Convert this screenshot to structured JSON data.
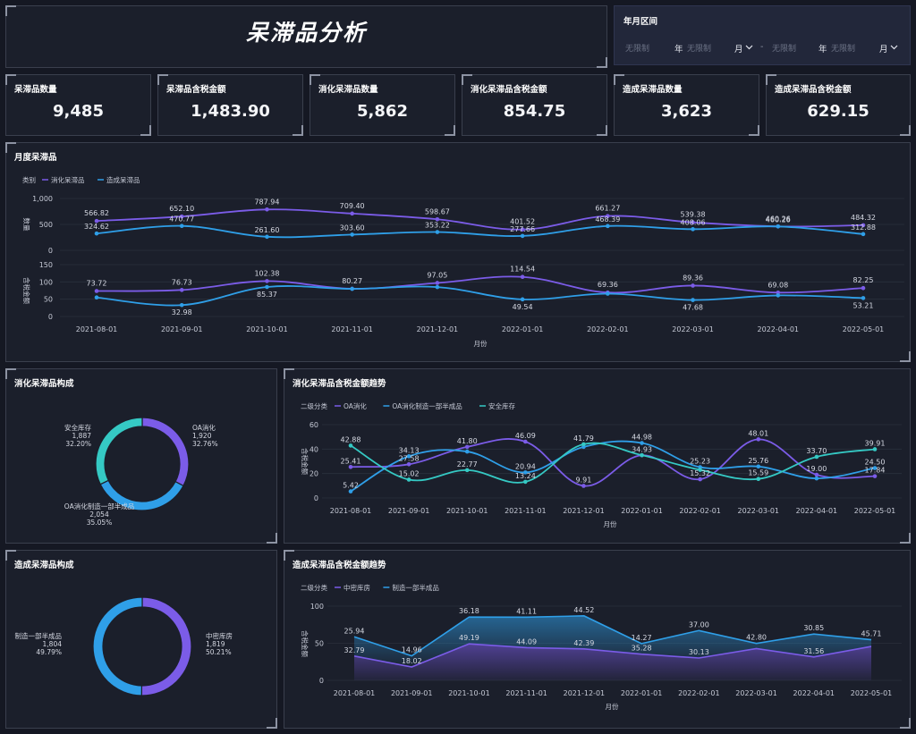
{
  "title": "呆滞品分析",
  "filter": {
    "label": "年月区间",
    "start_year_placeholder": "无限制",
    "year_unit": "年",
    "start_month_placeholder": "无限制",
    "month_unit": "月",
    "separator": "-",
    "end_year_placeholder": "无限制",
    "end_month_placeholder": "无限制"
  },
  "kpis": [
    {
      "label": "呆滞品数量",
      "value": "9,485"
    },
    {
      "label": "呆滞品含税金额",
      "value": "1,483.90"
    },
    {
      "label": "消化呆滞品数量",
      "value": "5,862"
    },
    {
      "label": "消化呆滞品含税金额",
      "value": "854.75"
    },
    {
      "label": "造成呆滞品数量",
      "value": "3,623"
    },
    {
      "label": "造成呆滞品含税金额",
      "value": "629.15"
    }
  ],
  "colors": {
    "purple": "#7b5ce8",
    "blue": "#2f9fe8",
    "teal": "#35c9c4",
    "purple_dark": "#6a52d9"
  },
  "chart_data": [
    {
      "id": "monthly",
      "type": "line",
      "title": "月度呆滞品",
      "legend_title": "类别",
      "xlabel": "月份",
      "categories": [
        "2021-08-01",
        "2021-09-01",
        "2021-10-01",
        "2021-11-01",
        "2021-12-01",
        "2022-01-01",
        "2022-02-01",
        "2022-03-01",
        "2022-04-01",
        "2022-05-01"
      ],
      "series": [
        {
          "name": "消化呆滞品",
          "color": "#7b5ce8"
        },
        {
          "name": "造成呆滞品",
          "color": "#2f9fe8"
        }
      ],
      "panels": [
        {
          "ylabel": "数量",
          "ylim": [
            0,
            1000
          ],
          "yticks": [
            "0",
            "500",
            "1,000"
          ],
          "series": [
            {
              "name": "消化呆滞品",
              "values": [
                566.82,
                652.1,
                787.94,
                709.4,
                598.67,
                401.52,
                661.27,
                539.38,
                460.26,
                484.32
              ]
            },
            {
              "name": "造成呆滞品",
              "values": [
                324.62,
                470.77,
                261.6,
                303.6,
                353.22,
                277.66,
                468.39,
                408.06,
                460.26,
                312.88
              ]
            }
          ]
        },
        {
          "ylabel": "含税金额",
          "ylim": [
            0,
            150
          ],
          "yticks": [
            "0",
            "50",
            "100",
            "150"
          ],
          "series": [
            {
              "name": "消化呆滞品",
              "values": [
                73.72,
                76.73,
                102.38,
                80.27,
                97.05,
                114.54,
                69.36,
                89.36,
                69.08,
                82.25
              ]
            },
            {
              "name": "造成呆滞品",
              "values": [
                55.0,
                32.98,
                85.37,
                80.0,
                85.0,
                49.54,
                66.0,
                47.68,
                61.0,
                53.21
              ]
            }
          ],
          "labels": [
            {
              "series": 0,
              "values": [
                "73.72",
                "76.73",
                "102.38",
                "80.27",
                "97.05",
                "114.54",
                "69.36",
                "89.36",
                "69.08",
                "82.25"
              ]
            },
            {
              "series": 1,
              "values": [
                "",
                "32.98",
                "85.37",
                "",
                "",
                "49.54",
                "",
                "47.68",
                "",
                "53.21"
              ]
            }
          ]
        }
      ]
    },
    {
      "id": "digest_donut",
      "type": "pie",
      "title": "消化呆滞品构成",
      "slices": [
        {
          "name": "OA消化",
          "value": 1920,
          "value_label": "1,920",
          "percent": "32.76%",
          "color": "#7b5ce8"
        },
        {
          "name": "OA消化制造一部半成品",
          "value": 2054,
          "value_label": "2,054",
          "percent": "35.05%",
          "color": "#2f9fe8"
        },
        {
          "name": "安全库存",
          "value": 1887,
          "value_label": "1,887",
          "percent": "32.20%",
          "color": "#35c9c4"
        }
      ]
    },
    {
      "id": "digest_trend",
      "type": "line",
      "title": "消化呆滞品含税金额趋势",
      "legend_title": "二级分类",
      "xlabel": "月份",
      "ylabel": "含税金额",
      "ylim": [
        0,
        60
      ],
      "yticks": [
        "0",
        "20",
        "40",
        "60"
      ],
      "categories": [
        "2021-08-01",
        "2021-09-01",
        "2021-10-01",
        "2021-11-01",
        "2021-12-01",
        "2022-01-01",
        "2022-02-01",
        "2022-03-01",
        "2022-04-01",
        "2022-05-01"
      ],
      "series": [
        {
          "name": "OA消化",
          "color": "#7b5ce8",
          "values": [
            25.41,
            27.58,
            41.8,
            46.09,
            9.91,
            34.93,
            15.32,
            48.01,
            19.0,
            17.84
          ]
        },
        {
          "name": "OA消化制造一部半成品",
          "color": "#2f9fe8",
          "values": [
            5.42,
            34.13,
            38.0,
            20.94,
            41.79,
            44.98,
            25.23,
            25.76,
            16.0,
            24.5
          ]
        },
        {
          "name": "安全库存",
          "color": "#35c9c4",
          "values": [
            42.88,
            15.02,
            22.77,
            13.24,
            44.0,
            35.0,
            23.0,
            15.59,
            33.7,
            39.91
          ]
        }
      ],
      "labels": [
        {
          "text": "42.88",
          "i": 0,
          "v": 42.88
        },
        {
          "text": "25.41",
          "i": 0,
          "v": 25.41
        },
        {
          "text": "5.42",
          "i": 0,
          "v": 5.42
        },
        {
          "text": "34.13",
          "i": 1,
          "v": 34.13
        },
        {
          "text": "27.58",
          "i": 1,
          "v": 27.58
        },
        {
          "text": "15.02",
          "i": 1,
          "v": 15.02
        },
        {
          "text": "41.80",
          "i": 2,
          "v": 41.8
        },
        {
          "text": "22.77",
          "i": 2,
          "v": 22.77
        },
        {
          "text": "46.09",
          "i": 3,
          "v": 46.09
        },
        {
          "text": "20.94",
          "i": 3,
          "v": 20.94
        },
        {
          "text": "13.24",
          "i": 3,
          "v": 13.24
        },
        {
          "text": "41.79",
          "i": 4,
          "v": 44.0
        },
        {
          "text": "9.91",
          "i": 4,
          "v": 9.91
        },
        {
          "text": "44.98",
          "i": 5,
          "v": 44.98
        },
        {
          "text": "34.93",
          "i": 5,
          "v": 34.93
        },
        {
          "text": "25.23",
          "i": 6,
          "v": 25.23
        },
        {
          "text": "15.32",
          "i": 6,
          "v": 15.32
        },
        {
          "text": "48.01",
          "i": 7,
          "v": 48.01
        },
        {
          "text": "25.76",
          "i": 7,
          "v": 25.76
        },
        {
          "text": "15.59",
          "i": 7,
          "v": 15.59
        },
        {
          "text": "33.70",
          "i": 8,
          "v": 33.7
        },
        {
          "text": "19.00",
          "i": 8,
          "v": 19.0
        },
        {
          "text": "39.91",
          "i": 9,
          "v": 39.91
        },
        {
          "text": "24.50",
          "i": 9,
          "v": 24.5
        },
        {
          "text": "17.84",
          "i": 9,
          "v": 17.84
        }
      ]
    },
    {
      "id": "cause_donut",
      "type": "pie",
      "title": "造成呆滞品构成",
      "slices": [
        {
          "name": "中密库房",
          "value": 1819,
          "value_label": "1,819",
          "percent": "50.21%",
          "color": "#7b5ce8"
        },
        {
          "name": "制造一部半成品",
          "value": 1804,
          "value_label": "1,804",
          "percent": "49.79%",
          "color": "#2f9fe8"
        }
      ]
    },
    {
      "id": "cause_trend",
      "type": "area",
      "title": "造成呆滞品含税金额趋势",
      "legend_title": "二级分类",
      "xlabel": "月份",
      "ylabel": "含税金额",
      "ylim": [
        0,
        100
      ],
      "yticks": [
        "0",
        "50",
        "100"
      ],
      "categories": [
        "2021-08-01",
        "2021-09-01",
        "2021-10-01",
        "2021-11-01",
        "2021-12-01",
        "2022-01-01",
        "2022-02-01",
        "2022-03-01",
        "2022-04-01",
        "2022-05-01"
      ],
      "series": [
        {
          "name": "中密库房",
          "color": "#7b5ce8",
          "values": [
            32.79,
            18.02,
            49.19,
            44.09,
            42.39,
            35.28,
            30.13,
            42.8,
            31.56,
            45.71
          ]
        },
        {
          "name": "制造一部半成品",
          "color": "#2f9fe8",
          "values": [
            25.94,
            14.96,
            36.18,
            41.11,
            44.52,
            14.27,
            37.0,
            7.0,
            30.85,
            9.0
          ]
        }
      ],
      "stacked_labels": [
        {
          "text": "25.94",
          "i": 0,
          "v": 58.73
        },
        {
          "text": "32.79",
          "i": 0,
          "v": 32.79
        },
        {
          "text": "14.96",
          "i": 1,
          "v": 32.98
        },
        {
          "text": "18.02",
          "i": 1,
          "v": 18.02
        },
        {
          "text": "36.18",
          "i": 2,
          "v": 85.37
        },
        {
          "text": "49.19",
          "i": 2,
          "v": 49.19
        },
        {
          "text": "41.11",
          "i": 3,
          "v": 85.2
        },
        {
          "text": "44.09",
          "i": 3,
          "v": 44.09
        },
        {
          "text": "44.52",
          "i": 4,
          "v": 86.91
        },
        {
          "text": "42.39",
          "i": 4,
          "v": 42.39
        },
        {
          "text": "14.27",
          "i": 5,
          "v": 49.55
        },
        {
          "text": "35.28",
          "i": 5,
          "v": 35.28
        },
        {
          "text": "37.00",
          "i": 6,
          "v": 67.13
        },
        {
          "text": "30.13",
          "i": 6,
          "v": 30.13
        },
        {
          "text": "42.80",
          "i": 7,
          "v": 49.8
        },
        {
          "text": "30.85",
          "i": 8,
          "v": 62.41
        },
        {
          "text": "31.56",
          "i": 8,
          "v": 31.56
        },
        {
          "text": "45.71",
          "i": 9,
          "v": 54.71
        }
      ]
    }
  ]
}
